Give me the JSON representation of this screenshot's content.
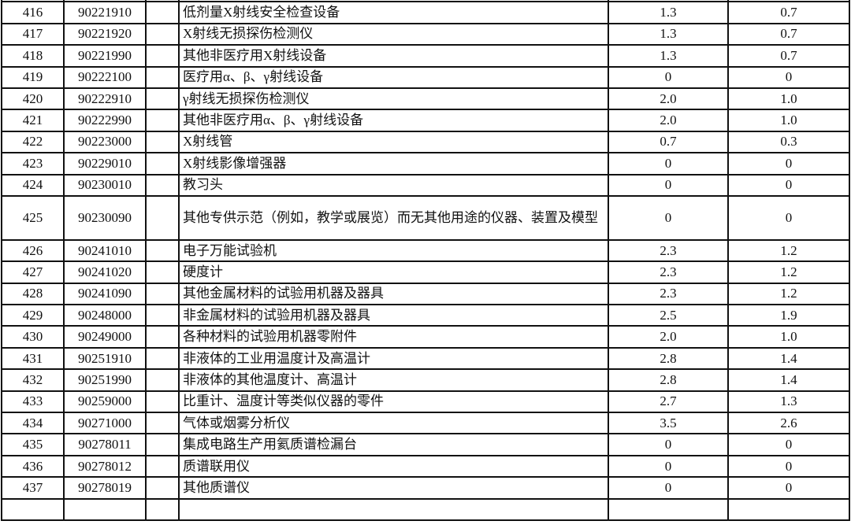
{
  "rows": [
    {
      "no": "",
      "code": "",
      "name": "",
      "v1": "",
      "v2": ""
    },
    {
      "no": "416",
      "code": "90221910",
      "name": "低剂量X射线安全检查设备",
      "v1": "1.3",
      "v2": "0.7"
    },
    {
      "no": "417",
      "code": "90221920",
      "name": "X射线无损探伤检测仪",
      "v1": "1.3",
      "v2": "0.7"
    },
    {
      "no": "418",
      "code": "90221990",
      "name": "其他非医疗用X射线设备",
      "v1": "1.3",
      "v2": "0.7"
    },
    {
      "no": "419",
      "code": "90222100",
      "name": "医疗用α、β、γ射线设备",
      "v1": "0",
      "v2": "0"
    },
    {
      "no": "420",
      "code": "90222910",
      "name": "γ射线无损探伤检测仪",
      "v1": "2.0",
      "v2": "1.0"
    },
    {
      "no": "421",
      "code": "90222990",
      "name": "其他非医疗用α、β、γ射线设备",
      "v1": "2.0",
      "v2": "1.0"
    },
    {
      "no": "422",
      "code": "90223000",
      "name": "X射线管",
      "v1": "0.7",
      "v2": "0.3"
    },
    {
      "no": "423",
      "code": "90229010",
      "name": "X射线影像增强器",
      "v1": "0",
      "v2": "0"
    },
    {
      "no": "424",
      "code": "90230010",
      "name": "教习头",
      "v1": "0",
      "v2": "0"
    },
    {
      "no": "425",
      "code": "90230090",
      "name": "其他专供示范（例如，教学或展览）而无其他用途的仪器、装置及模型",
      "v1": "0",
      "v2": "0"
    },
    {
      "no": "426",
      "code": "90241010",
      "name": "电子万能试验机",
      "v1": "2.3",
      "v2": "1.2"
    },
    {
      "no": "427",
      "code": "90241020",
      "name": "硬度计",
      "v1": "2.3",
      "v2": "1.2"
    },
    {
      "no": "428",
      "code": "90241090",
      "name": "其他金属材料的试验用机器及器具",
      "v1": "2.3",
      "v2": "1.2"
    },
    {
      "no": "429",
      "code": "90248000",
      "name": "非金属材料的试验用机器及器具",
      "v1": "2.5",
      "v2": "1.9"
    },
    {
      "no": "430",
      "code": "90249000",
      "name": "各种材料的试验用机器零附件",
      "v1": "2.0",
      "v2": "1.0"
    },
    {
      "no": "431",
      "code": "90251910",
      "name": "非液体的工业用温度计及高温计",
      "v1": "2.8",
      "v2": "1.4"
    },
    {
      "no": "432",
      "code": "90251990",
      "name": "非液体的其他温度计、高温计",
      "v1": "2.8",
      "v2": "1.4"
    },
    {
      "no": "433",
      "code": "90259000",
      "name": "比重计、温度计等类似仪器的零件",
      "v1": "2.7",
      "v2": "1.3"
    },
    {
      "no": "434",
      "code": "90271000",
      "name": "气体或烟雾分析仪",
      "v1": "3.5",
      "v2": "2.6"
    },
    {
      "no": "435",
      "code": "90278011",
      "name": "集成电路生产用氦质谱检漏台",
      "v1": "0",
      "v2": "0"
    },
    {
      "no": "436",
      "code": "90278012",
      "name": "质谱联用仪",
      "v1": "0",
      "v2": "0"
    },
    {
      "no": "437",
      "code": "90278019",
      "name": "其他质谱仪",
      "v1": "0",
      "v2": "0"
    },
    {
      "no": "",
      "code": "",
      "name": "",
      "v1": "",
      "v2": ""
    }
  ]
}
